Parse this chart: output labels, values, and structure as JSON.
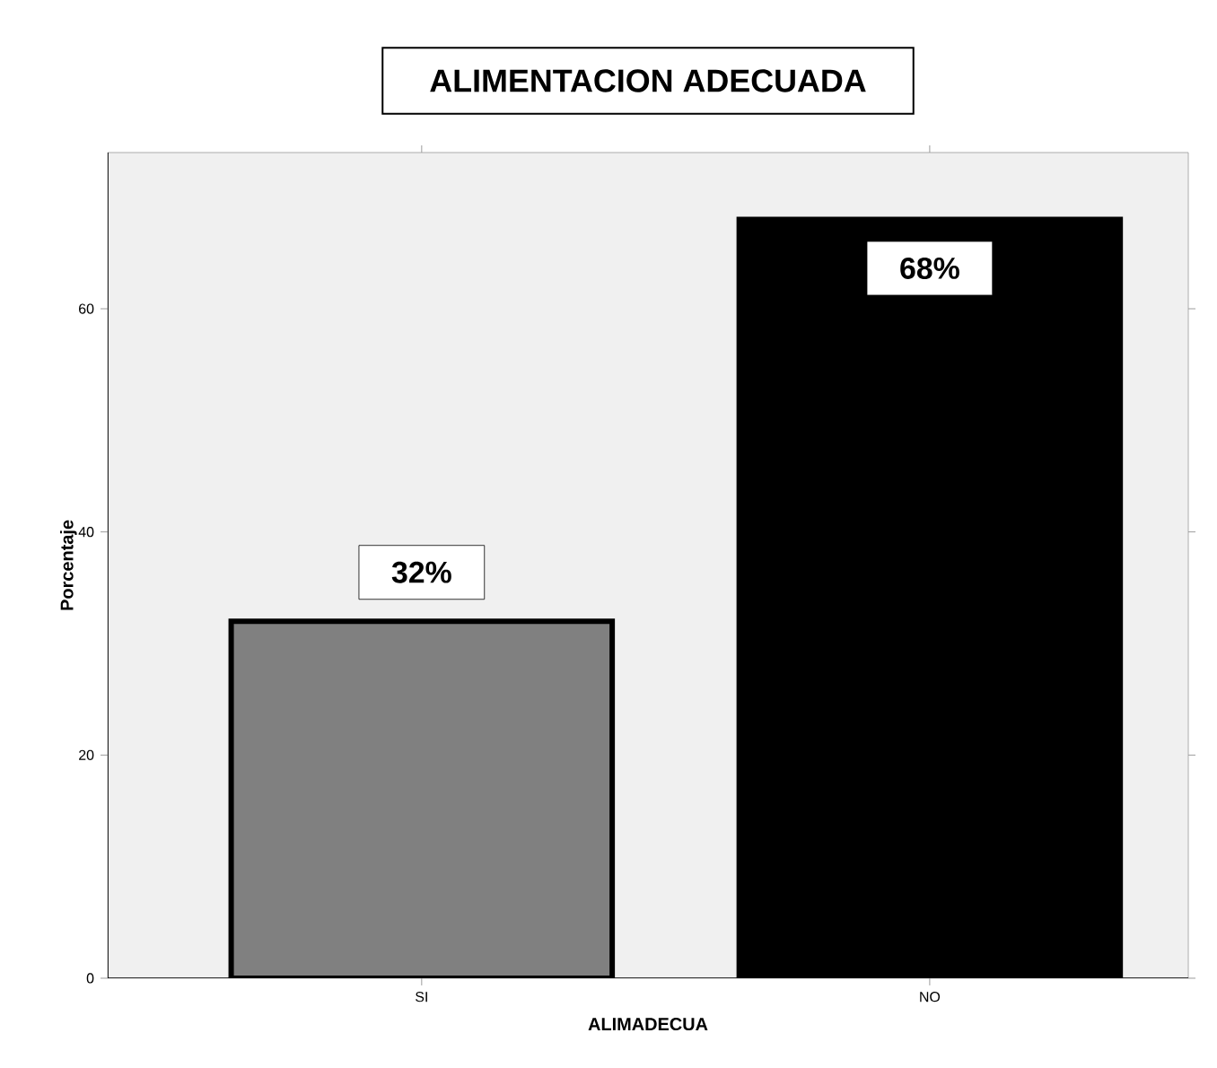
{
  "chart_data": {
    "type": "bar",
    "title": "ALIMENTACION ADECUADA",
    "xlabel": "ALIMADECUA",
    "ylabel": "Porcentaje",
    "categories": [
      "SI",
      "NO"
    ],
    "values": [
      32,
      68
    ],
    "colors": [
      "#808080",
      "#000000"
    ],
    "value_labels": [
      "32%",
      "68%"
    ],
    "ylim": [
      0,
      74
    ],
    "yticks": [
      0,
      20,
      40,
      60
    ]
  }
}
